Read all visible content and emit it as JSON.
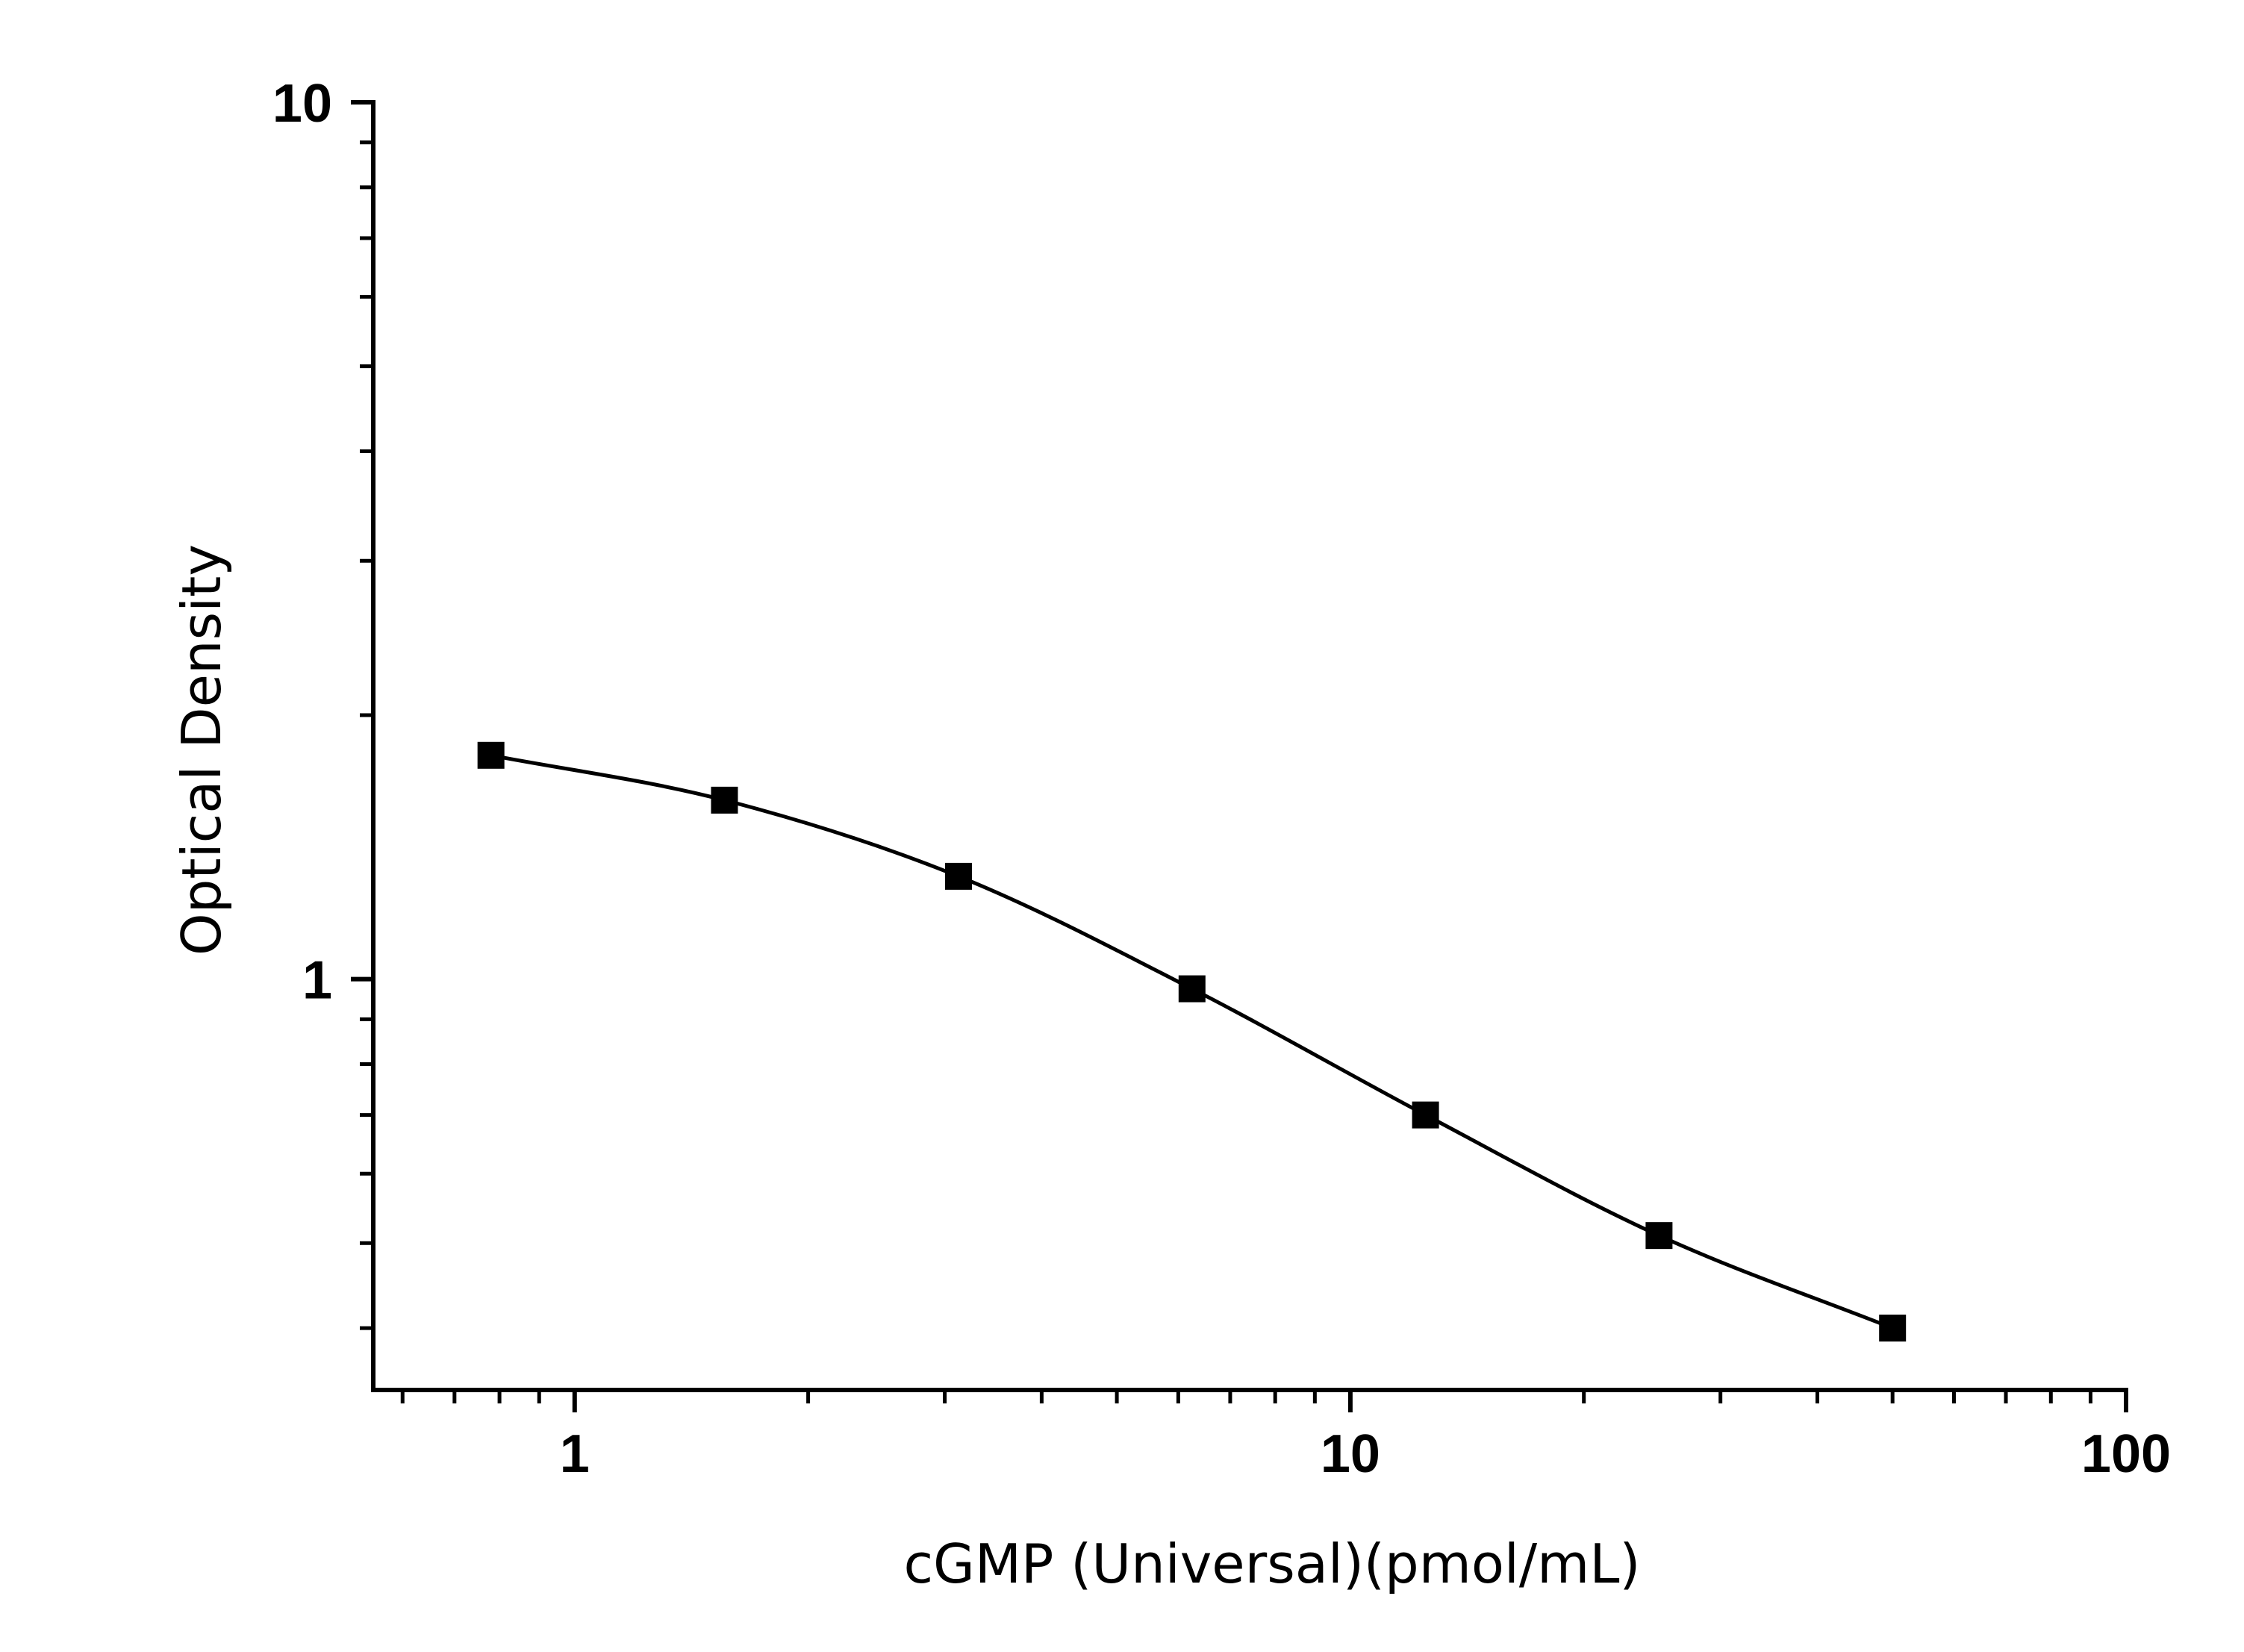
{
  "chart_data": {
    "type": "scatter",
    "xlabel": "cGMP (Universal)(pmol/mL)",
    "ylabel": "Optical Density",
    "x_scale": "log",
    "y_scale": "log",
    "xlim": [
      0.55,
      100
    ],
    "ylim": [
      0.34,
      10
    ],
    "x_ticks": [
      {
        "value": 1,
        "label": "1"
      },
      {
        "value": 10,
        "label": "10"
      },
      {
        "value": 100,
        "label": "100"
      }
    ],
    "y_ticks": [
      {
        "value": 1,
        "label": "1"
      },
      {
        "value": 10,
        "label": "10"
      }
    ],
    "grid": false,
    "marker": "square",
    "series": [
      {
        "x": [
          0.78,
          1.56,
          3.125,
          6.25,
          12.5,
          25,
          50
        ],
        "y": [
          1.8,
          1.6,
          1.31,
          0.975,
          0.7,
          0.51,
          0.4
        ]
      }
    ],
    "colors": {
      "axis": "#000000",
      "marker": "#000000",
      "curve": "#000000"
    }
  }
}
